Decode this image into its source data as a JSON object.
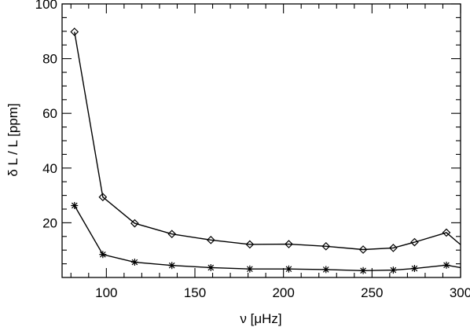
{
  "chart_data": {
    "type": "line",
    "xlabel": "ν [μHz]",
    "ylabel": "δ L / L [ppm]",
    "xlim": [
      75,
      300
    ],
    "ylim": [
      0,
      100
    ],
    "x_ticks": [
      100,
      150,
      200,
      250,
      300
    ],
    "y_ticks": [
      20,
      40,
      60,
      80,
      100
    ],
    "grid": false,
    "series": [
      {
        "marker": "diamond",
        "x": [
          82,
          98,
          116,
          137,
          159,
          181,
          203,
          224,
          245,
          262,
          274,
          292,
          300
        ],
        "y": [
          89.8,
          29.4,
          19.8,
          15.9,
          13.7,
          12.1,
          12.2,
          11.4,
          10.2,
          10.8,
          12.9,
          16.4,
          12.0
        ]
      },
      {
        "marker": "asterisk",
        "x": [
          82,
          98,
          116,
          137,
          159,
          181,
          203,
          224,
          245,
          262,
          274,
          292,
          300
        ],
        "y": [
          26.3,
          8.4,
          5.6,
          4.4,
          3.6,
          3.1,
          3.1,
          2.9,
          2.5,
          2.7,
          3.3,
          4.5,
          3.6
        ]
      }
    ]
  }
}
